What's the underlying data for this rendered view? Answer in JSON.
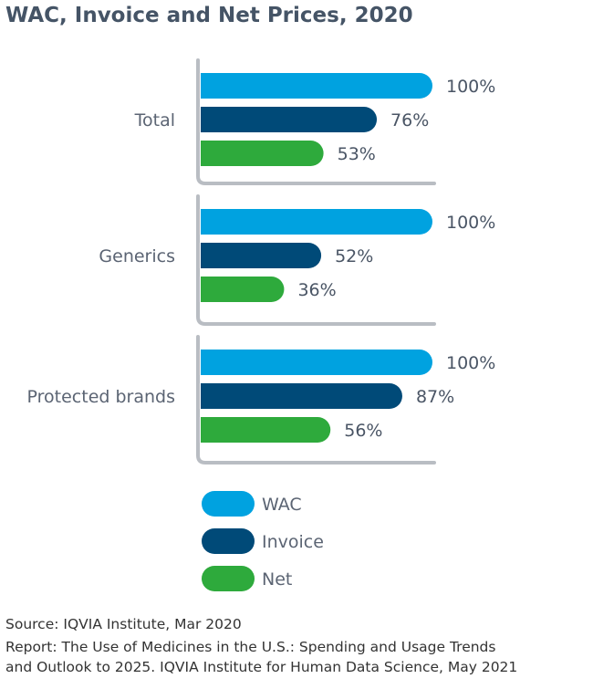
{
  "chart_data": {
    "type": "bar",
    "orientation": "horizontal",
    "title": "WAC, Invoice and Net Prices, 2020",
    "categories": [
      "Total",
      "Generics",
      "Protected brands"
    ],
    "series": [
      {
        "name": "WAC",
        "color": "#00a2e0",
        "values": [
          100,
          100,
          100
        ]
      },
      {
        "name": "Invoice",
        "color": "#004a78",
        "values": [
          76,
          52,
          87
        ]
      },
      {
        "name": "Net",
        "color": "#2eaa3c",
        "values": [
          53,
          36,
          56
        ]
      }
    ],
    "value_suffix": "%",
    "xlim": [
      0,
      100
    ],
    "legend": "bottom",
    "grid": false
  },
  "source": {
    "line1": "Source: IQVIA Institute, Mar 2020",
    "line2": "Report: The Use of Medicines in the U.S.: Spending and Usage Trends",
    "line3": "and Outlook to 2025. IQVIA Institute for Human Data Science, May 2021"
  }
}
